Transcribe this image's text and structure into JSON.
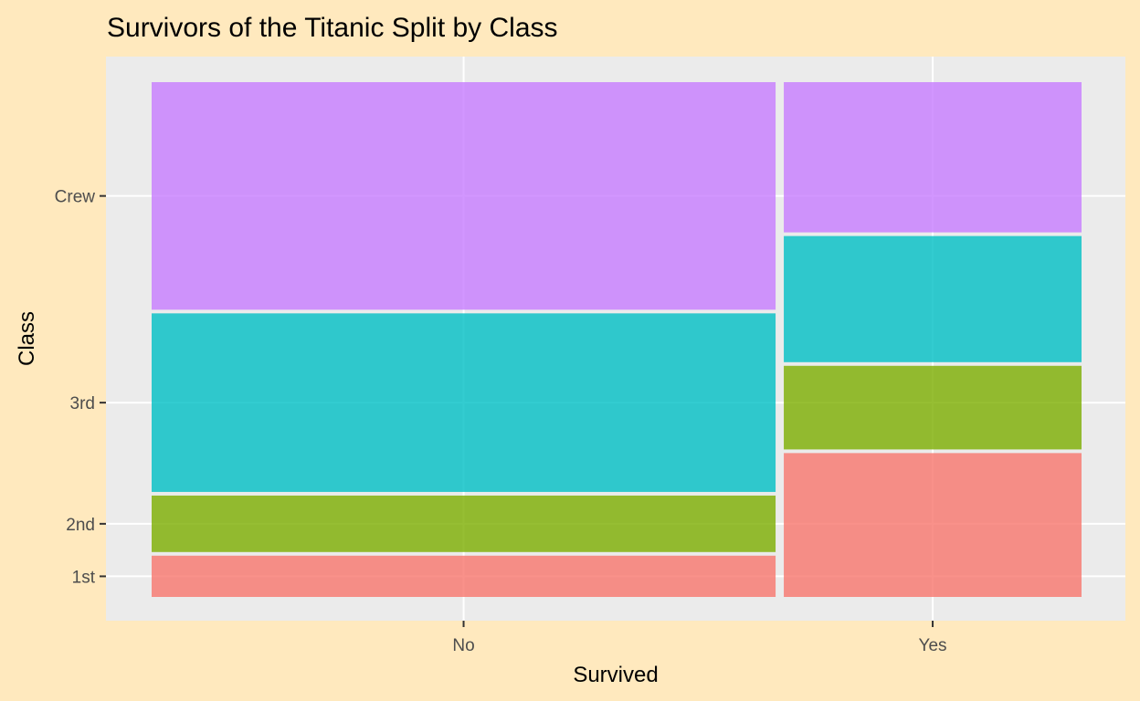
{
  "chart_data": {
    "type": "mosaic",
    "title": "Survivors of the Titanic Split by Class",
    "xlabel": "Survived",
    "ylabel": "Class",
    "categories": [
      "No",
      "Yes"
    ],
    "classes": [
      "1st",
      "2nd",
      "3rd",
      "Crew"
    ],
    "counts": {
      "No": {
        "1st": 122,
        "2nd": 167,
        "3rd": 528,
        "Crew": 673
      },
      "Yes": {
        "1st": 203,
        "2nd": 118,
        "3rd": 178,
        "Crew": 212
      }
    },
    "colors": {
      "1st": "#F8766D",
      "2nd": "#7CAE00",
      "3rd": "#00BFC4",
      "Crew": "#C77CFF"
    },
    "fill_alpha": 0.8,
    "panel_background": "#EBEBEB",
    "page_background": "#FFE9BE",
    "grid": true,
    "legend": "none"
  }
}
